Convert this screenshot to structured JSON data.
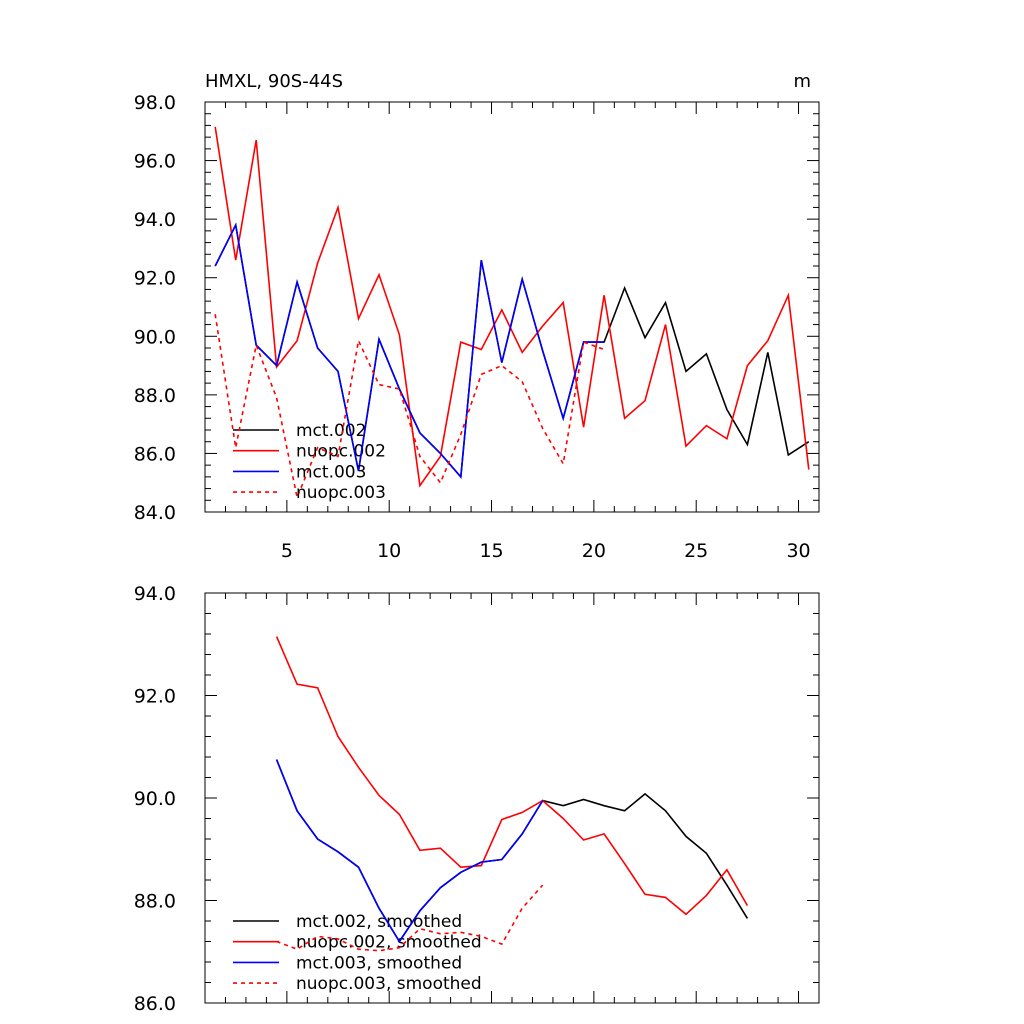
{
  "chart_data": [
    {
      "type": "line",
      "title": "HMXL, 90S-44S",
      "units": "m",
      "xlabel": "",
      "ylabel": "",
      "xlim": [
        1,
        31
      ],
      "ylim": [
        84,
        98
      ],
      "yticks": [
        "84.0",
        "86.0",
        "88.0",
        "90.0",
        "92.0",
        "94.0",
        "96.0",
        "98.0"
      ],
      "xticks": [
        "5",
        "10",
        "15",
        "20",
        "25",
        "30"
      ],
      "grid": false,
      "legend_position": "lower-left",
      "series": [
        {
          "name": "mct.002",
          "color": "#000000",
          "dash": false,
          "x": [
            1.5,
            2.5,
            3.5,
            4.5,
            5.5,
            6.5,
            7.5,
            8.5,
            9.5,
            10.5,
            11.5,
            12.5,
            13.5,
            14.5,
            15.5,
            16.5,
            17.5,
            18.5,
            19.5,
            20.5,
            21.5,
            22.5,
            23.5,
            24.5,
            25.5,
            26.5,
            27.5,
            28.5,
            29.5,
            30.5
          ],
          "values": [
            92.4,
            93.8,
            89.7,
            89.0,
            91.85,
            89.6,
            88.8,
            85.4,
            89.9,
            88.2,
            86.7,
            86.0,
            85.2,
            92.6,
            89.1,
            91.95,
            89.5,
            87.2,
            89.8,
            89.8,
            91.65,
            89.95,
            91.15,
            88.8,
            89.4,
            87.5,
            86.3,
            89.45,
            85.95,
            86.4
          ]
        },
        {
          "name": "nuopc.002",
          "color": "#ff0000",
          "dash": false,
          "x": [
            1.5,
            2.5,
            3.5,
            4.5,
            5.5,
            6.5,
            7.5,
            8.5,
            9.5,
            10.5,
            11.5,
            12.5,
            13.5,
            14.5,
            15.5,
            16.5,
            17.5,
            18.5,
            19.5,
            20.5,
            21.5,
            22.5,
            23.5,
            24.5,
            25.5,
            26.5,
            27.5,
            28.5,
            29.5,
            30.5
          ],
          "values": [
            97.15,
            92.6,
            96.7,
            88.95,
            89.85,
            92.5,
            94.4,
            90.6,
            92.1,
            90.05,
            84.9,
            85.9,
            89.8,
            89.55,
            90.9,
            89.45,
            90.35,
            91.15,
            86.9,
            91.4,
            87.2,
            87.8,
            90.4,
            86.25,
            86.95,
            86.5,
            89.0,
            89.85,
            91.4,
            85.45
          ]
        },
        {
          "name": "mct.003",
          "color": "#0000ff",
          "dash": false,
          "x": [
            1.5,
            2.5,
            3.5,
            4.5,
            5.5,
            6.5,
            7.5,
            8.5,
            9.5,
            10.5,
            11.5,
            12.5,
            13.5,
            14.5,
            15.5,
            16.5,
            17.5,
            18.5,
            19.5,
            20.5
          ],
          "values": [
            92.4,
            93.8,
            89.7,
            89.0,
            91.85,
            89.6,
            88.8,
            85.4,
            89.9,
            88.2,
            86.7,
            86.0,
            85.2,
            92.6,
            89.1,
            91.95,
            89.5,
            87.2,
            89.8,
            89.8
          ]
        },
        {
          "name": "nuopc.003",
          "color": "#ff0000",
          "dash": true,
          "x": [
            1.5,
            2.5,
            3.5,
            4.5,
            5.5,
            6.5,
            7.5,
            8.5,
            9.5,
            10.5,
            11.5,
            12.5,
            13.5,
            14.5,
            15.5,
            16.5,
            17.5,
            18.5,
            19.5,
            20.5
          ],
          "values": [
            90.75,
            86.2,
            89.7,
            87.9,
            84.5,
            86.2,
            85.9,
            89.85,
            88.35,
            88.2,
            85.9,
            85.0,
            86.65,
            88.7,
            89.0,
            88.45,
            86.85,
            85.65,
            89.8,
            89.55
          ]
        }
      ]
    },
    {
      "type": "line",
      "title": "",
      "xlabel": "",
      "ylabel": "",
      "xlim": [
        1,
        31
      ],
      "ylim": [
        86,
        94
      ],
      "yticks": [
        "86.0",
        "88.0",
        "90.0",
        "92.0",
        "94.0"
      ],
      "xticks": [],
      "grid": false,
      "legend_position": "lower-left",
      "series": [
        {
          "name": "mct.002, smoothed",
          "color": "#000000",
          "dash": false,
          "x": [
            4.5,
            5.5,
            6.5,
            7.5,
            8.5,
            9.5,
            10.5,
            11.5,
            12.5,
            13.5,
            14.5,
            15.5,
            16.5,
            17.5,
            18.5,
            19.5,
            20.5,
            21.5,
            22.5,
            23.5,
            24.5,
            25.5,
            26.5,
            27.5
          ],
          "values": [
            90.75,
            89.75,
            89.2,
            88.95,
            88.65,
            87.85,
            87.2,
            87.8,
            88.25,
            88.55,
            88.75,
            88.8,
            89.3,
            89.95,
            89.85,
            89.97,
            89.85,
            89.75,
            90.08,
            89.75,
            89.25,
            88.92,
            88.3,
            87.65
          ]
        },
        {
          "name": "nuopc.002, smoothed",
          "color": "#ff0000",
          "dash": false,
          "x": [
            4.5,
            5.5,
            6.5,
            7.5,
            8.5,
            9.5,
            10.5,
            11.5,
            12.5,
            13.5,
            14.5,
            15.5,
            16.5,
            17.5,
            18.5,
            19.5,
            20.5,
            21.5,
            22.5,
            23.5,
            24.5,
            25.5,
            26.5,
            27.5
          ],
          "values": [
            93.15,
            92.22,
            92.15,
            91.2,
            90.6,
            90.05,
            89.68,
            88.98,
            89.02,
            88.65,
            88.68,
            89.58,
            89.72,
            89.95,
            89.6,
            89.18,
            89.3,
            88.72,
            88.12,
            88.06,
            87.73,
            88.1,
            88.6,
            87.9
          ]
        },
        {
          "name": "mct.003, smoothed",
          "color": "#0000ff",
          "dash": false,
          "x": [
            4.5,
            5.5,
            6.5,
            7.5,
            8.5,
            9.5,
            10.5,
            11.5,
            12.5,
            13.5,
            14.5,
            15.5,
            16.5,
            17.5
          ],
          "values": [
            90.75,
            89.75,
            89.2,
            88.95,
            88.65,
            87.85,
            87.2,
            87.8,
            88.25,
            88.55,
            88.75,
            88.8,
            89.3,
            89.95
          ]
        },
        {
          "name": "nuopc.003, smoothed",
          "color": "#ff0000",
          "dash": true,
          "x": [
            4.5,
            5.5,
            6.5,
            7.5,
            8.5,
            9.5,
            10.5,
            11.5,
            12.5,
            13.5,
            14.5,
            15.5,
            16.5,
            17.5
          ],
          "values": [
            87.2,
            87.05,
            87.3,
            87.25,
            87.05,
            87.02,
            87.08,
            87.45,
            87.35,
            87.38,
            87.3,
            87.15,
            87.85,
            88.3
          ]
        }
      ]
    }
  ]
}
